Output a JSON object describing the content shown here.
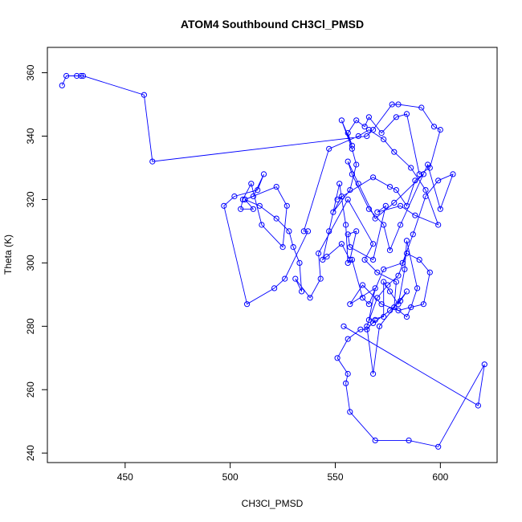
{
  "chart_data": {
    "type": "line",
    "title": "ATOM4 Southbound CH3Cl_PMSD",
    "xlabel": "CH3Cl_PMSD",
    "ylabel": "Theta (K)",
    "xlim": [
      413,
      627
    ],
    "ylim": [
      237,
      368
    ],
    "xticks": [
      450,
      500,
      550,
      600
    ],
    "yticks": [
      240,
      260,
      280,
      300,
      320,
      340,
      360
    ],
    "grid": false,
    "style": {
      "line_color": "#0000ff",
      "marker": "open-circle"
    },
    "x": [
      420,
      422,
      429,
      427,
      430,
      459,
      463,
      565,
      568,
      577,
      580,
      591,
      597,
      600,
      595,
      590,
      584,
      579,
      572,
      566,
      564,
      560,
      556,
      558,
      553,
      558,
      560,
      557,
      549,
      553,
      551,
      568,
      576,
      579,
      584,
      588,
      592,
      578,
      569,
      561,
      556,
      558,
      566,
      573,
      576,
      581,
      594,
      600,
      606,
      599,
      593,
      587,
      582,
      573,
      566,
      563,
      558,
      556,
      555,
      552,
      547,
      544,
      546,
      553,
      557,
      560,
      556,
      557,
      568,
      574,
      570,
      581,
      588,
      599,
      593,
      586,
      578,
      573,
      566,
      561,
      547,
      535,
      537,
      526,
      521,
      508,
      497,
      502,
      513,
      516,
      511,
      507,
      522,
      527,
      525,
      515,
      510,
      506,
      505,
      511,
      507,
      514,
      522,
      528,
      530,
      533,
      534,
      531,
      538,
      543,
      542,
      556,
      568,
      564,
      570,
      579,
      578,
      584,
      586,
      589,
      584,
      583,
      580,
      576,
      573,
      573,
      566,
      569,
      557,
      563,
      572,
      580,
      592,
      595,
      590,
      584,
      580,
      575,
      570,
      565,
      568,
      571,
      584,
      581,
      576,
      568,
      569,
      565,
      562,
      556,
      551,
      556,
      555,
      557,
      569,
      585,
      599,
      621,
      618,
      554
    ],
    "y": [
      356,
      359,
      359,
      359,
      359,
      353,
      332,
      340,
      342,
      350,
      350,
      349,
      343,
      342,
      330,
      328,
      347,
      346,
      341,
      346,
      343,
      345,
      341,
      337,
      345,
      336,
      331,
      323,
      316,
      321,
      320,
      327,
      324,
      323,
      318,
      326,
      328,
      319,
      314,
      325,
      332,
      328,
      317,
      312,
      304,
      312,
      331,
      317,
      328,
      326,
      321,
      309,
      300,
      298,
      287,
      289,
      301,
      300,
      312,
      325,
      310,
      301,
      302,
      306,
      301,
      310,
      309,
      305,
      301,
      318,
      316,
      318,
      315,
      312,
      323,
      330,
      335,
      339,
      342,
      340,
      336,
      310,
      310,
      295,
      292,
      287,
      318,
      321,
      323,
      328,
      321,
      320,
      324,
      318,
      305,
      312,
      325,
      320,
      317,
      317,
      320,
      318,
      314,
      310,
      305,
      300,
      291,
      295,
      289,
      295,
      303,
      320,
      306,
      301,
      297,
      294,
      286,
      283,
      286,
      292,
      307,
      298,
      287,
      291,
      294,
      283,
      282,
      292,
      287,
      293,
      287,
      285,
      287,
      297,
      301,
      303,
      296,
      293,
      289,
      280,
      265,
      280,
      291,
      288,
      285,
      281,
      282,
      279,
      279,
      276,
      270,
      265,
      262,
      253,
      244,
      244,
      242,
      268,
      255,
      280
    ]
  }
}
